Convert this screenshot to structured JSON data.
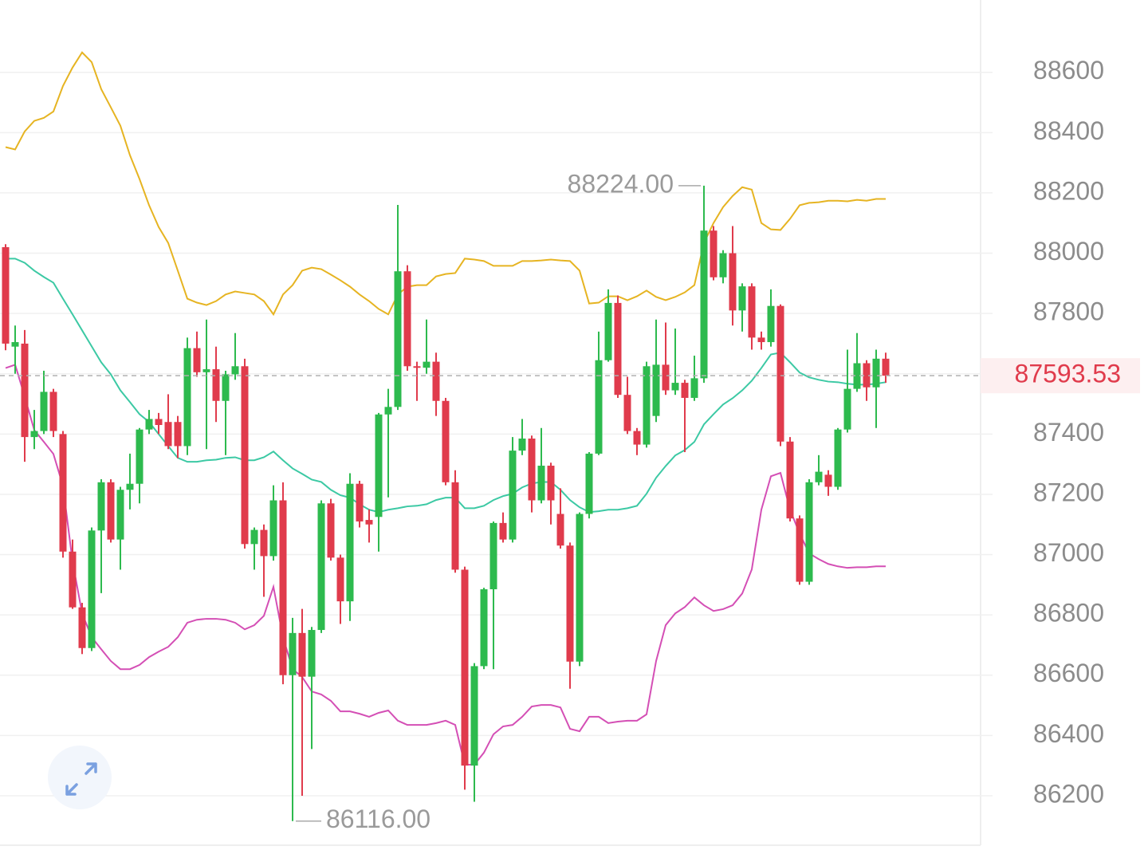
{
  "chart_data": {
    "type": "candlestick",
    "ylim": [
      86020,
      88840
    ],
    "yticks": [
      86200,
      86400,
      86600,
      86800,
      87000,
      87200,
      87400,
      87600,
      87800,
      88000,
      88200,
      88400,
      88600
    ],
    "grid": true,
    "up_color": "#2dba4e",
    "down_color": "#e03b4c",
    "open": [
      88020,
      87690,
      87700,
      87390,
      87410,
      87540,
      87400,
      87010,
      86825,
      86690,
      87080,
      87240,
      87050,
      87215,
      87235,
      87415,
      87450,
      87440,
      87440,
      87360,
      87685,
      87605,
      87615,
      87510,
      87598,
      87625,
      87035,
      87082,
      86995,
      87180,
      86600,
      86740,
      86595,
      86750,
      87170,
      86990,
      86845,
      87235,
      87115,
      87125,
      87465,
      87490,
      87940,
      87625,
      87620,
      87640,
      87510,
      87240,
      86950,
      86300,
      86630,
      86885,
      87105,
      87050,
      87345,
      87385,
      87180,
      87295,
      87135,
      87030,
      86645,
      87135,
      87335,
      87645,
      87835,
      87530,
      87410,
      87365,
      87460,
      87630,
      87545,
      87570,
      87520,
      87585,
      88075,
      87920,
      88000,
      87810,
      87890,
      87720,
      87705,
      87825,
      87375,
      87120,
      86910,
      87240,
      87265,
      87225,
      87415,
      87550,
      87635,
      87555,
      87650
    ],
    "high": [
      88030,
      87760,
      87745,
      87480,
      87610,
      87550,
      87410,
      87050,
      86840,
      87090,
      87250,
      87250,
      87225,
      87335,
      87420,
      87480,
      87470,
      87532,
      87460,
      87720,
      87740,
      87780,
      87690,
      87610,
      87735,
      87650,
      87090,
      87100,
      87230,
      87240,
      86790,
      86820,
      86760,
      87180,
      87185,
      87000,
      87270,
      87245,
      87150,
      87470,
      87550,
      88160,
      87960,
      87640,
      87780,
      87670,
      87520,
      87280,
      86960,
      86640,
      86890,
      87110,
      87140,
      87390,
      87450,
      87395,
      87420,
      87305,
      87220,
      87040,
      87140,
      87340,
      87740,
      87880,
      87860,
      87590,
      87420,
      87640,
      87780,
      87770,
      87750,
      87580,
      87660,
      88224,
      88090,
      88010,
      88090,
      87900,
      87900,
      87740,
      87880,
      87830,
      87390,
      87130,
      87250,
      87330,
      87280,
      87420,
      87680,
      87735,
      87645,
      87680,
      87670
    ],
    "low": [
      87678,
      87600,
      87308,
      87350,
      87400,
      87390,
      86990,
      86820,
      86670,
      86680,
      86872,
      87040,
      86950,
      87150,
      87170,
      87400,
      87400,
      87350,
      87320,
      87330,
      87590,
      87350,
      87440,
      87330,
      87580,
      87020,
      86950,
      86860,
      86980,
      86570,
      86116,
      86200,
      86355,
      86740,
      86980,
      86770,
      86780,
      87090,
      87040,
      87010,
      87190,
      87480,
      87610,
      87510,
      87600,
      87460,
      87230,
      86940,
      86220,
      86180,
      86620,
      86620,
      87040,
      87040,
      87330,
      87140,
      87170,
      87100,
      87020,
      86555,
      86630,
      87120,
      87330,
      87640,
      87520,
      87400,
      87330,
      87355,
      87440,
      87530,
      87530,
      87340,
      87510,
      87570,
      87910,
      87900,
      87760,
      87740,
      87680,
      87680,
      87690,
      87360,
      87110,
      86900,
      86900,
      87230,
      87195,
      87215,
      87405,
      87540,
      87510,
      87420,
      87570
    ],
    "close": [
      87700,
      87705,
      87390,
      87410,
      87540,
      87410,
      87010,
      86825,
      86690,
      87080,
      87240,
      87050,
      87215,
      87235,
      87415,
      87450,
      87430,
      87360,
      87360,
      87685,
      87605,
      87615,
      87510,
      87598,
      87625,
      87035,
      87082,
      86995,
      87180,
      86600,
      86740,
      86595,
      86750,
      87170,
      86990,
      86845,
      87235,
      87110,
      87100,
      87465,
      87490,
      87940,
      87625,
      87620,
      87640,
      87510,
      87240,
      86950,
      86300,
      86630,
      86885,
      87105,
      87050,
      87345,
      87385,
      87180,
      87295,
      87180,
      87030,
      86645,
      87135,
      87335,
      87645,
      87835,
      87530,
      87410,
      87365,
      87625,
      87630,
      87545,
      87570,
      87520,
      87585,
      88075,
      87920,
      88000,
      87810,
      87890,
      87720,
      87705,
      87825,
      87375,
      87120,
      86910,
      87240,
      87275,
      87225,
      87415,
      87550,
      87635,
      87555,
      87650,
      87593.53
    ],
    "overlays": [
      {
        "color": "#e6b422",
        "values": [
          88352,
          88344,
          88404,
          88439,
          88449,
          88470,
          88555,
          88616,
          88666,
          88634,
          88544,
          88484,
          88423,
          88325,
          88246,
          88159,
          88087,
          88034,
          87942,
          87849,
          87836,
          87828,
          87841,
          87863,
          87873,
          87868,
          87863,
          87841,
          87797,
          87863,
          87894,
          87942,
          87952,
          87947,
          87929,
          87910,
          87889,
          87863,
          87841,
          87815,
          87797,
          87863,
          87889,
          87894,
          87894,
          87923,
          87931,
          87934,
          87982,
          87979,
          87974,
          87958,
          87958,
          87958,
          87974,
          87974,
          87976,
          87979,
          87976,
          87974,
          87942,
          87833,
          87836,
          87857,
          87857,
          87844,
          87857,
          87876,
          87855,
          87844,
          87855,
          87870,
          87894,
          88034,
          88100,
          88153,
          88190,
          88219,
          88211,
          88100,
          88079,
          88077,
          88114,
          88159,
          88167,
          88169,
          88174,
          88174,
          88172,
          88177,
          88174,
          88180,
          88180
        ]
      },
      {
        "color": "#3cc9a4",
        "values": [
          87982,
          87982,
          87968,
          87942,
          87921,
          87902,
          87849,
          87797,
          87744,
          87691,
          87638,
          87598,
          87545,
          87506,
          87466,
          87440,
          87400,
          87360,
          87321,
          87308,
          87308,
          87313,
          87315,
          87321,
          87323,
          87313,
          87313,
          87323,
          87342,
          87313,
          87286,
          87268,
          87249,
          87241,
          87215,
          87197,
          87189,
          87167,
          87149,
          87141,
          87149,
          87154,
          87160,
          87162,
          87167,
          87181,
          87189,
          87189,
          87154,
          87154,
          87162,
          87181,
          87194,
          87202,
          87223,
          87236,
          87241,
          87241,
          87215,
          87181,
          87157,
          87141,
          87144,
          87149,
          87149,
          87154,
          87162,
          87202,
          87255,
          87294,
          87329,
          87347,
          87374,
          87432,
          87466,
          87498,
          87519,
          87545,
          87577,
          87619,
          87664,
          87670,
          87638,
          87604,
          87588,
          87580,
          87574,
          87572,
          87567,
          87564,
          87564,
          87567,
          87572
        ]
      },
      {
        "color": "#d44fb5",
        "values": [
          87619,
          87630,
          87524,
          87413,
          87374,
          87334,
          87228,
          86977,
          86805,
          86726,
          86686,
          86647,
          86620,
          86620,
          86634,
          86660,
          86678,
          86694,
          86726,
          86774,
          86784,
          86787,
          86787,
          86784,
          86774,
          86752,
          86766,
          86797,
          86893,
          86726,
          86620,
          86594,
          86546,
          86536,
          86515,
          86480,
          86480,
          86472,
          86462,
          86475,
          86483,
          86449,
          86435,
          86435,
          86435,
          86441,
          86449,
          86435,
          86303,
          86303,
          86343,
          86404,
          86430,
          86435,
          86462,
          86496,
          86501,
          86501,
          86493,
          86422,
          86414,
          86462,
          86462,
          86441,
          86446,
          86449,
          86449,
          86470,
          86647,
          86766,
          86805,
          86826,
          86858,
          86832,
          86813,
          86819,
          86832,
          86871,
          86951,
          87149,
          87260,
          87271,
          87149,
          87070,
          87004,
          86985,
          86969,
          86961,
          86956,
          86958,
          86958,
          86961,
          86961
        ]
      }
    ],
    "max_label": {
      "value": 88224,
      "label": "88224.00"
    },
    "min_label": {
      "value": 86116,
      "label": "86116.00"
    },
    "last_price": 87593.53
  }
}
